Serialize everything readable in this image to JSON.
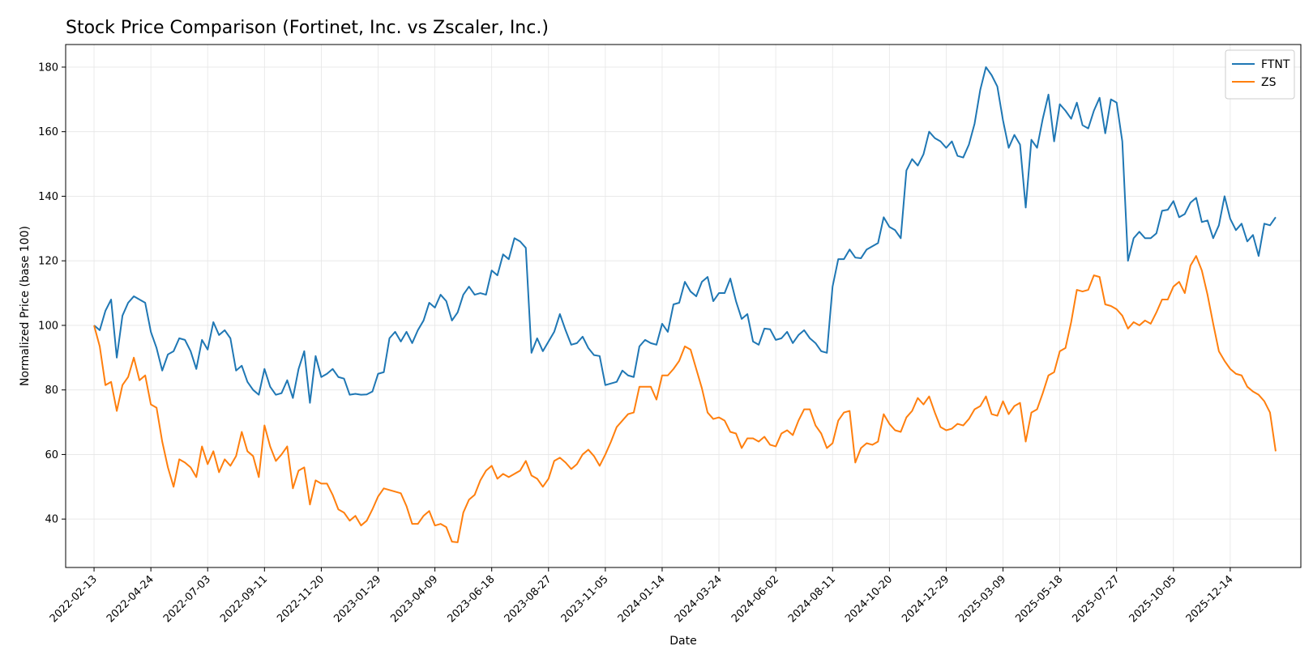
{
  "chart_data": {
    "type": "line",
    "title": "Stock Price Comparison (Fortinet, Inc. vs Zscaler, Inc.)",
    "xlabel": "Date",
    "ylabel": "Normalized Price (base 100)",
    "ylim": [
      25,
      187
    ],
    "xlim": [
      "2022-01-09",
      "2026-03-11"
    ],
    "y_ticks": [
      40,
      60,
      80,
      100,
      120,
      140,
      160,
      180
    ],
    "x_ticks": [
      "2022-02-13",
      "2022-04-24",
      "2022-07-03",
      "2022-09-11",
      "2022-11-20",
      "2023-01-29",
      "2023-04-09",
      "2023-06-18",
      "2023-08-27",
      "2023-11-05",
      "2024-01-14",
      "2024-03-24",
      "2024-06-02",
      "2024-08-11",
      "2024-10-20",
      "2024-12-29",
      "2025-03-09",
      "2025-05-18",
      "2025-07-27",
      "2025-10-05",
      "2025-12-14"
    ],
    "grid": true,
    "legend_position": "top-right",
    "x_start": "2022-02-13",
    "x_step_days": 7,
    "series": [
      {
        "name": "FTNT",
        "color": "#1f77b4",
        "values": [
          100,
          98.5,
          104.5,
          108,
          90,
          103,
          107,
          109,
          108,
          107,
          98,
          93,
          86,
          91,
          92,
          96,
          95.5,
          92,
          86.5,
          95.5,
          92.5,
          101,
          97,
          98.5,
          96,
          86,
          87.5,
          82.5,
          80,
          78.5,
          86.5,
          81,
          78.5,
          79,
          83,
          77.5,
          86.5,
          92,
          76,
          90.5,
          84,
          85,
          86.5,
          84,
          83.5,
          78.5,
          78.8,
          78.5,
          78.6,
          79.5,
          85,
          85.5,
          96,
          98,
          95,
          98,
          94.5,
          98.5,
          101.5,
          107,
          105.5,
          109.5,
          107.5,
          101.5,
          104,
          109.5,
          112,
          109.5,
          110,
          109.5,
          117,
          115.5,
          122,
          120.5,
          127,
          126,
          124,
          91.5,
          96,
          92,
          95,
          98,
          103.5,
          98.5,
          94,
          94.5,
          96.5,
          93,
          90.8,
          90.5,
          81.5,
          82,
          82.5,
          86,
          84.5,
          84,
          93.5,
          95.5,
          94.5,
          94,
          100.5,
          98,
          106.5,
          107,
          113.5,
          110.5,
          109,
          113.5,
          115,
          107.5,
          110,
          110,
          114.5,
          107.5,
          102,
          103.5,
          95,
          94,
          99,
          98.8,
          95.5,
          96,
          98,
          94.5,
          97,
          98.5,
          96,
          94.5,
          92,
          91.5,
          112,
          120.5,
          120.5,
          123.5,
          121,
          120.8,
          123.5,
          124.5,
          125.5,
          133.5,
          130.5,
          129.5,
          127,
          148,
          151.5,
          149.5,
          153,
          160,
          158,
          157,
          155,
          157,
          152.5,
          152,
          156,
          162.5,
          173,
          180,
          177.5,
          174,
          163.5,
          155,
          159,
          156,
          136.5,
          157.5,
          155,
          164,
          171.5,
          157,
          168.5,
          166.5,
          164,
          169,
          162,
          161,
          166.5,
          170.5,
          159.5,
          170,
          169,
          157,
          120,
          127,
          129,
          127,
          127,
          128.5,
          135.5,
          135.8,
          138.5,
          133.5,
          134.5,
          138,
          139.5,
          132,
          132.5,
          127,
          131,
          140,
          133,
          129.5,
          131.5,
          126,
          128,
          121.5,
          131.5,
          131,
          133.5
        ]
      },
      {
        "name": "ZS",
        "color": "#ff7f0e",
        "values": [
          100,
          93.5,
          81.5,
          82.5,
          73.5,
          81.5,
          84,
          90,
          83,
          84.5,
          75.5,
          74.5,
          64,
          56,
          50,
          58.5,
          57.5,
          56,
          53,
          62.5,
          57,
          61,
          54.5,
          58.5,
          56.5,
          59.5,
          67,
          61,
          59.5,
          53,
          69,
          62.5,
          58,
          60,
          62.5,
          49.5,
          55,
          56,
          44.5,
          52,
          51,
          51,
          47.5,
          43,
          42,
          39.5,
          41,
          38,
          39.5,
          43,
          47,
          49.5,
          49,
          48.5,
          48,
          44,
          38.5,
          38.5,
          41,
          42.5,
          38,
          38.5,
          37.5,
          33,
          32.8,
          42,
          46,
          47.5,
          52,
          55,
          56.5,
          52.5,
          54,
          53,
          54,
          55,
          58,
          53.5,
          52.5,
          50,
          52.5,
          58,
          59,
          57.5,
          55.5,
          57,
          60,
          61.5,
          59.5,
          56.5,
          60,
          64,
          68.5,
          70.5,
          72.5,
          73,
          81,
          81,
          81,
          77,
          84.5,
          84.5,
          86.5,
          89,
          93.5,
          92.5,
          86.5,
          80.5,
          73,
          71,
          71.5,
          70.5,
          67,
          66.5,
          62,
          65,
          65,
          64,
          65.5,
          63,
          62.5,
          66.5,
          67.5,
          66,
          70.5,
          74,
          74,
          69,
          66.5,
          62,
          63.5,
          70.5,
          73,
          73.5,
          57.5,
          62,
          63.5,
          63,
          64,
          72.5,
          69.5,
          67.5,
          67,
          71.5,
          73.5,
          77.5,
          75.5,
          78,
          73,
          68.5,
          67.5,
          68,
          69.5,
          69,
          71,
          74,
          75,
          78,
          72.5,
          72,
          76.5,
          72.5,
          75,
          76,
          64,
          73,
          74,
          79,
          84.5,
          85.5,
          92,
          93,
          101,
          111,
          110.5,
          111,
          115.5,
          115,
          106.5,
          106,
          105,
          103,
          99,
          101,
          100,
          101.5,
          100.5,
          104,
          108,
          108,
          112,
          113.5,
          110,
          118.5,
          121.5,
          117,
          109.5,
          100.5,
          92,
          89,
          86.5,
          85,
          84.5,
          81,
          79.5,
          78.5,
          76.5,
          73,
          61
        ]
      }
    ]
  }
}
